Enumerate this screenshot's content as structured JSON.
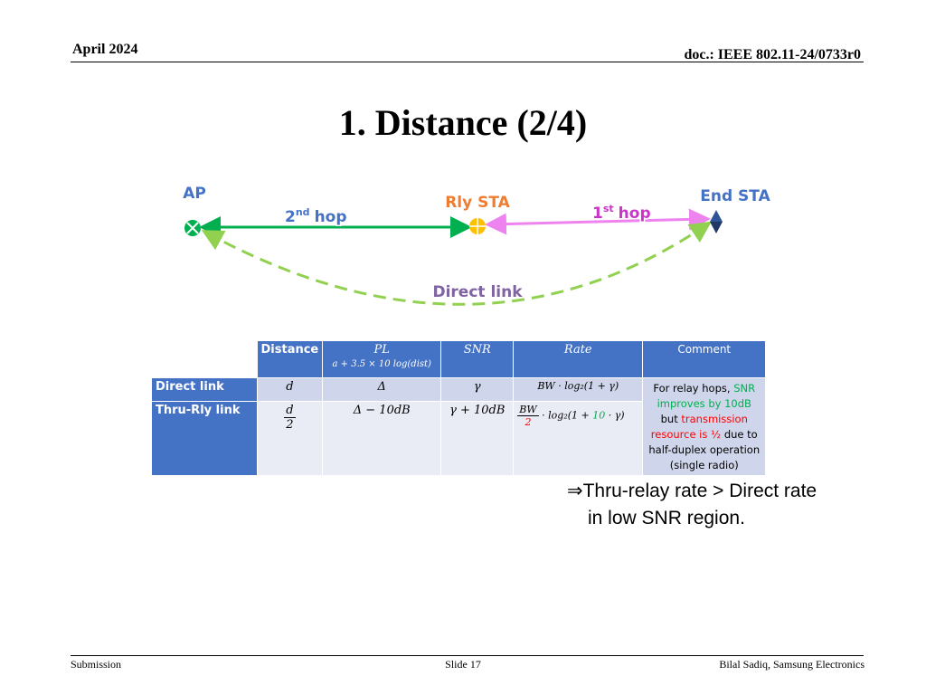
{
  "header": {
    "date": "April 2024",
    "doc": "doc.: IEEE 802.11-24/0733r0"
  },
  "title": "1. Distance (2/4)",
  "diagram": {
    "nodes": [
      {
        "label": "AP"
      },
      {
        "label": "Rly STA"
      },
      {
        "label": "End STA"
      }
    ],
    "links": [
      {
        "number": "2",
        "suffix": "nd",
        "text": "hop"
      },
      {
        "number": "1",
        "suffix": "st",
        "text": "hop"
      },
      {
        "text": "Direct link"
      }
    ]
  },
  "table": {
    "columns": [
      {
        "label": "Distance"
      },
      {
        "label": "PL",
        "formula": "a + 3.5 × 10 log(dist)"
      },
      {
        "label": "SNR"
      },
      {
        "label": "Rate"
      },
      {
        "label": "Comment"
      }
    ],
    "rows": [
      {
        "label": "Direct link",
        "distance": "d",
        "pl": "Δ",
        "snr": "γ",
        "rate": "BW · log₂(1 + γ)"
      },
      {
        "label": "Thru-Rly link",
        "distance": {
          "numerator": "d",
          "denominator": "2"
        },
        "pl": "Δ − 10dB",
        "snr": "γ + 10dB",
        "rate": {
          "numerator": "BW",
          "denominator": "2",
          "expression": [
            "· log₂(1 + ",
            "10",
            " · γ)"
          ]
        }
      }
    ],
    "comment": [
      "For relay hops, ",
      "SNR improves by 10dB",
      " but ",
      "transmission resource is ½",
      " due to half-duplex operation (single radio)"
    ]
  },
  "conclusion": [
    "⇒Thru-relay rate > Direct rate",
    "in low SNR region."
  ],
  "footer": {
    "left": "Submission",
    "center": "Slide 17",
    "right": "Bilal Sadiq, Samsung Electronics"
  }
}
